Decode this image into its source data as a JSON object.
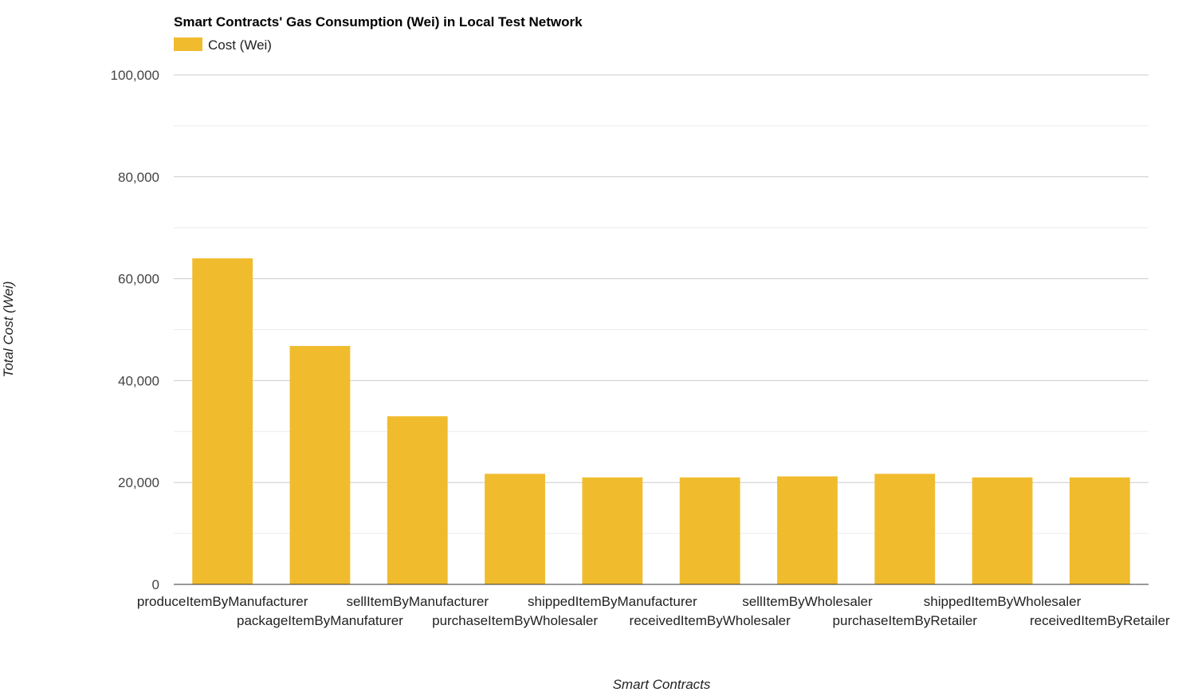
{
  "chart_data": {
    "type": "bar",
    "title": "Smart Contracts' Gas Consumption (Wei) in Local Test Network",
    "xlabel": "Smart Contracts",
    "ylabel": "Total Cost (Wei)",
    "ylim": [
      0,
      100000
    ],
    "y_ticks": [
      {
        "value": 0,
        "label": "0"
      },
      {
        "value": 20000,
        "label": "20,000"
      },
      {
        "value": 40000,
        "label": "40,000"
      },
      {
        "value": 60000,
        "label": "60,000"
      },
      {
        "value": 80000,
        "label": "80,000"
      },
      {
        "value": 100000,
        "label": "100,000"
      }
    ],
    "grid": true,
    "legend": {
      "position": "top-left"
    },
    "categories": [
      "produceItemByManufacturer",
      "packageItemByManufaturer",
      "sellItemByManufacturer",
      "purchaseItemByWholesaler",
      "shippedItemByManufacturer",
      "receivedItemByWholesaler",
      "sellItemByWholesaler",
      "purchaseItemByRetailer",
      "shippedItemByWholesaler",
      "receivedItemByRetailer"
    ],
    "series": [
      {
        "name": "Cost (Wei)",
        "color": "#f0bc2e",
        "values": [
          64000,
          46800,
          33000,
          21700,
          21000,
          21000,
          21200,
          21700,
          21000,
          21000
        ]
      }
    ]
  }
}
